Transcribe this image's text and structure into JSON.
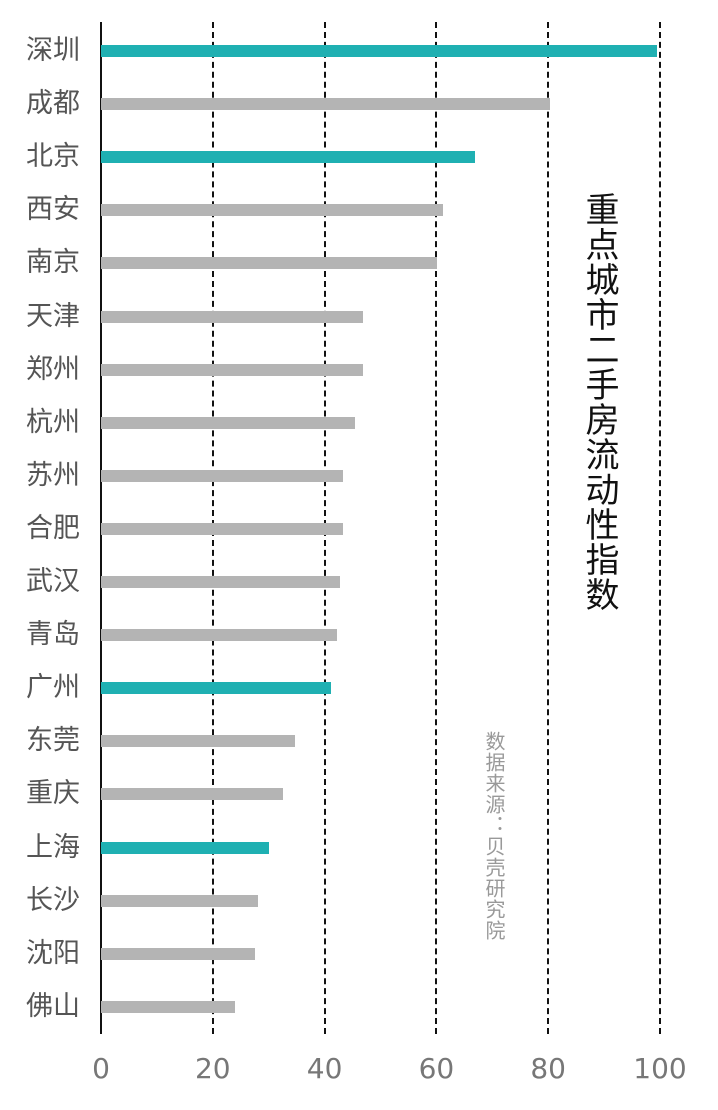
{
  "chart_data": {
    "type": "bar",
    "orientation": "horizontal",
    "title": "重点城市二手房流动性指数",
    "source": "数据来源：贝壳研究院",
    "xlabel": "",
    "ylabel": "",
    "xlim": [
      0,
      100
    ],
    "x_ticks": [
      "0",
      "20",
      "40",
      "60",
      "80",
      "100"
    ],
    "grid": "vertical dashed",
    "categories": [
      "深圳",
      "成都",
      "北京",
      "西安",
      "南京",
      "天津",
      "郑州",
      "杭州",
      "苏州",
      "合肥",
      "武汉",
      "青岛",
      "广州",
      "东莞",
      "重庆",
      "上海",
      "长沙",
      "沈阳",
      "佛山"
    ],
    "values": [
      99.5,
      80.3,
      66.9,
      61.2,
      60.1,
      46.9,
      46.9,
      45.4,
      43.3,
      43.3,
      42.8,
      42.2,
      41.1,
      34.7,
      32.6,
      30.0,
      28.1,
      27.5,
      24.0
    ],
    "highlighted": [
      "深圳",
      "北京",
      "广州",
      "上海"
    ],
    "colors": {
      "highlight": "#1fb0b2",
      "default": "#b4b4b4",
      "grid": "#111111",
      "tick_text": "#777777",
      "label_text": "#555555"
    }
  }
}
